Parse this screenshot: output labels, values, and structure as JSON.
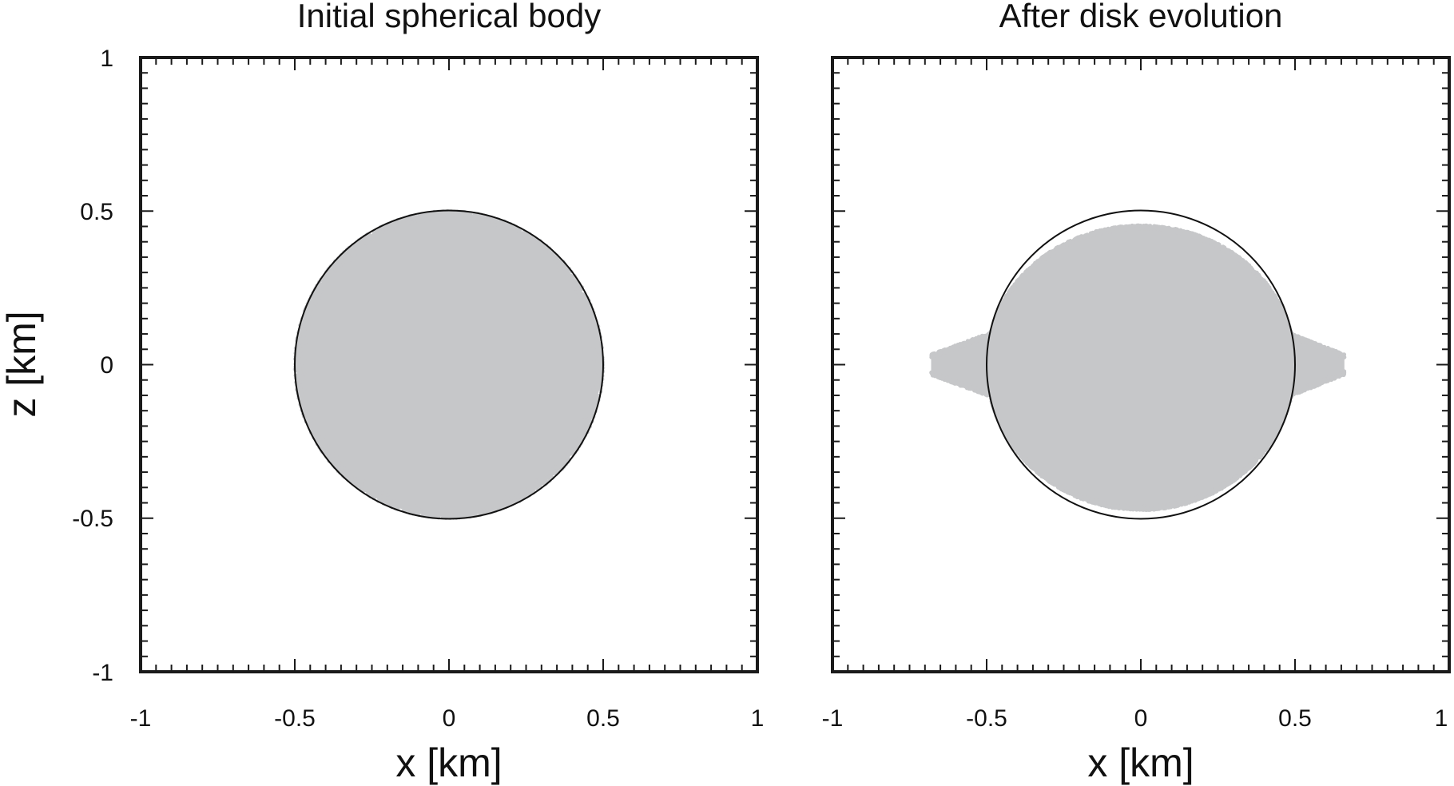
{
  "colors": {
    "particles": "#c6c7c9",
    "frame": "#1a1a1a",
    "reference_circle": "#111111",
    "background": "#ffffff"
  },
  "chart_data": [
    {
      "type": "scatter",
      "title": "Initial spherical body",
      "xlabel": "x [km]",
      "ylabel": "z [km]",
      "xlim": [
        -1,
        1
      ],
      "ylim": [
        -1,
        1
      ],
      "xticks": [
        "-1",
        "-0.5",
        "0",
        "0.5",
        "1"
      ],
      "yticks": [
        "1",
        "0.5",
        "0",
        "-0.5",
        "-1"
      ],
      "grid": false,
      "reference_circle": {
        "cx": 0,
        "cz": 0,
        "r": 0.5
      },
      "particle_distribution": {
        "shape": "sphere",
        "radius": 0.5
      }
    },
    {
      "type": "scatter",
      "title": "After disk evolution",
      "xlabel": "x [km]",
      "ylabel": "",
      "xlim": [
        -1,
        1
      ],
      "ylim": [
        -1,
        1
      ],
      "xticks": [
        "-1",
        "-0.5",
        "0",
        "0.5",
        "1"
      ],
      "yticks": [],
      "grid": false,
      "reference_circle": {
        "cx": 0,
        "cz": 0,
        "r": 0.5
      },
      "particle_distribution": {
        "shape": "oblate body with equatorial ridge",
        "x_extent": [
          -0.68,
          0.66
        ],
        "z_extent": [
          -0.47,
          0.45
        ],
        "body_half_width": 0.5,
        "ridge_half_thickness": 0.14,
        "ridge_tip_half_thickness": 0.03
      }
    }
  ]
}
